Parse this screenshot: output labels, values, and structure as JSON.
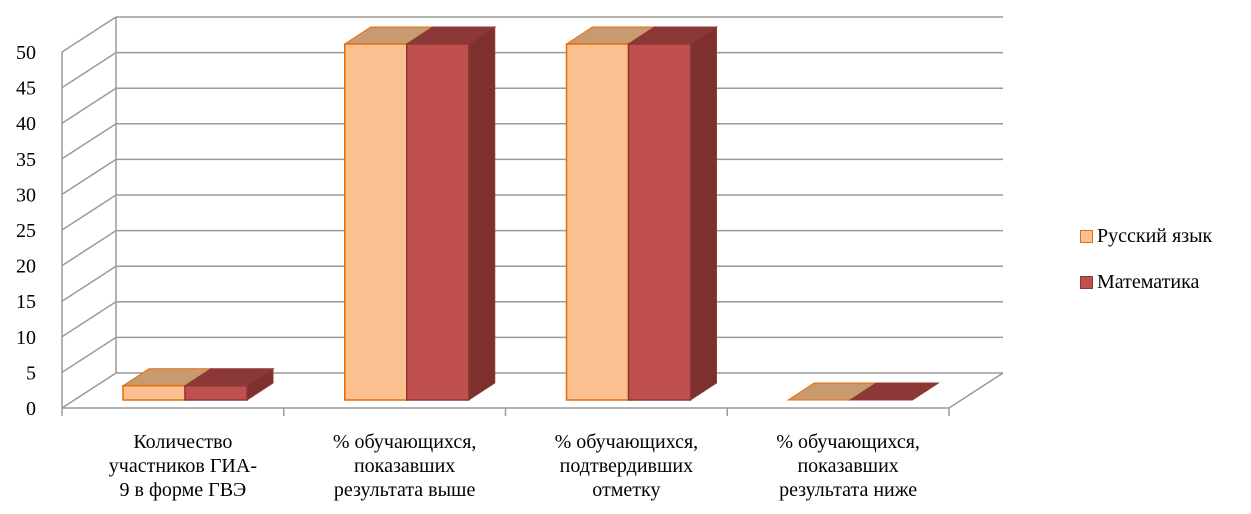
{
  "chart_data": {
    "type": "bar",
    "categories": [
      [
        "Количество",
        "участников ГИА-",
        "9 в форме ГВЭ"
      ],
      [
        "% обучающихся,",
        "показавших",
        "результата выше"
      ],
      [
        "% обучающихся,",
        "подтвердивших",
        "отметку"
      ],
      [
        "% обучающихся,",
        "показавших",
        "результата ниже"
      ]
    ],
    "series": [
      {
        "name": "Русский язык",
        "values": [
          2,
          50,
          50,
          0
        ],
        "color": "#FAC090",
        "side_color": "#C0905F",
        "edge_color": "#E46C0A"
      },
      {
        "name": "Математика",
        "values": [
          2,
          50,
          50,
          0
        ],
        "color": "#C0504D",
        "side_color": "#7E302F",
        "edge_color": "#8C3836"
      }
    ],
    "ylim": [
      0,
      50
    ],
    "yticks": [
      "0",
      "5",
      "10",
      "15",
      "20",
      "25",
      "30",
      "35",
      "40",
      "45",
      "50"
    ],
    "grid": true,
    "legend_position": "right",
    "style": "3d-clustered-column"
  }
}
